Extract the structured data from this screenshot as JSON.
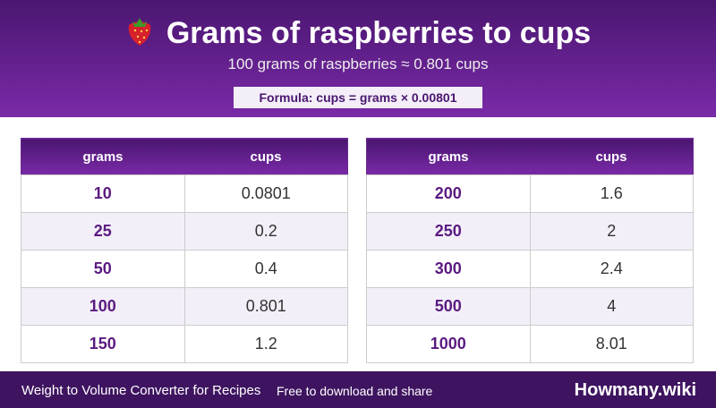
{
  "header": {
    "title": "Grams of raspberries to cups",
    "subtitle": "100 grams of raspberries ≈ 0.801 cups",
    "formula": "Formula: cups = grams × 0.00801"
  },
  "tables": [
    {
      "columns": [
        "grams",
        "cups"
      ],
      "rows": [
        [
          "10",
          "0.0801"
        ],
        [
          "25",
          "0.2"
        ],
        [
          "50",
          "0.4"
        ],
        [
          "100",
          "0.801"
        ],
        [
          "150",
          "1.2"
        ]
      ]
    },
    {
      "columns": [
        "grams",
        "cups"
      ],
      "rows": [
        [
          "200",
          "1.6"
        ],
        [
          "250",
          "2"
        ],
        [
          "300",
          "2.4"
        ],
        [
          "500",
          "4"
        ],
        [
          "1000",
          "8.01"
        ]
      ]
    }
  ],
  "footer": {
    "left": "Weight to Volume Converter for Recipes",
    "middle": "Free to download and share",
    "brand": "Howmany.wiki"
  }
}
